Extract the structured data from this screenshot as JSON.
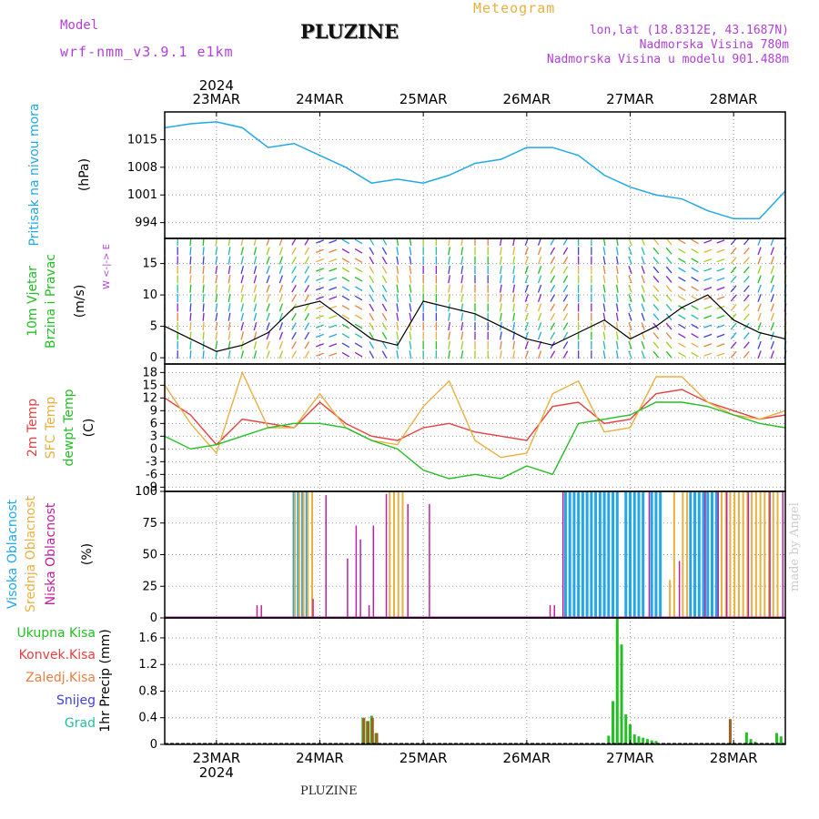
{
  "header": {
    "model_label": "Model",
    "model_run": "wrf-nmm_v3.9.1  e1km",
    "title": "PLUZINE",
    "meteogram": "Meteogram",
    "location": "lon,lat (18.8312E, 43.1687N)",
    "altitude": "Nadmorska Visina 780m",
    "model_altitude": "Nadmorska Visina u modelu 901.488m",
    "footer": "PLUZINE",
    "credit": "made by Angel"
  },
  "colors": {
    "pressure": "#22a8e8",
    "temp2m": "#e84040",
    "sfc": "#e8b040",
    "dewpt": "#22c022",
    "high_cloud": "#22a8e8",
    "mid_cloud": "#e8b040",
    "low_cloud": "#c020a0",
    "precip": "#22c022",
    "conv": "#a06020"
  },
  "chart_data": [
    {
      "type": "line",
      "panel": "pressure",
      "ylabel": [
        "Pritisak na nivou mora",
        "(hPa)"
      ],
      "ylim": [
        990,
        1022
      ],
      "yticks": [
        994,
        1001,
        1008,
        1015
      ],
      "x_labels": [
        "23MAR",
        "24MAR",
        "25MAR",
        "26MAR",
        "27MAR",
        "28MAR"
      ],
      "x_year": "2024",
      "x": [
        0,
        6,
        12,
        18,
        24,
        30,
        36,
        42,
        48,
        54,
        60,
        66,
        72,
        78,
        84,
        90,
        96,
        102,
        108,
        114,
        120,
        126,
        132,
        138,
        144
      ],
      "values": [
        1018,
        1019,
        1019.5,
        1018,
        1013,
        1014,
        1011,
        1008,
        1004,
        1005,
        1004,
        1006,
        1009,
        1010,
        1013,
        1013,
        1011,
        1006,
        1003,
        1001,
        1000,
        997,
        995,
        995,
        1002
      ]
    },
    {
      "type": "line",
      "panel": "wind",
      "ylabel": [
        "10m Vjetar",
        "Brzina i Pravac",
        "(m/s)"
      ],
      "compass": "W  <-|->  E",
      "ylim": [
        -1,
        19
      ],
      "yticks": [
        0,
        5,
        10,
        15
      ],
      "x": [
        0,
        6,
        12,
        18,
        24,
        30,
        36,
        42,
        48,
        54,
        60,
        66,
        72,
        78,
        84,
        90,
        96,
        102,
        108,
        114,
        120,
        126,
        132,
        138,
        144
      ],
      "values": [
        5,
        3,
        1,
        2,
        4,
        8,
        9,
        6,
        3,
        2,
        9,
        8,
        7,
        5,
        3,
        2,
        4,
        6,
        3,
        5,
        8,
        10,
        6,
        4,
        3
      ]
    },
    {
      "type": "line",
      "panel": "temperature",
      "ylabel": [
        "2m Temp",
        "SFC Temp",
        "dewpt Temp",
        "(C)"
      ],
      "ylim": [
        -10,
        20
      ],
      "yticks": [
        -9,
        -6,
        -3,
        0,
        3,
        6,
        9,
        12,
        15,
        18
      ],
      "x": [
        0,
        6,
        12,
        18,
        24,
        30,
        36,
        42,
        48,
        54,
        60,
        66,
        72,
        78,
        84,
        90,
        96,
        102,
        108,
        114,
        120,
        126,
        132,
        138,
        144
      ],
      "series": [
        {
          "name": "2m Temp",
          "values": [
            12,
            8,
            1,
            7,
            6,
            5,
            11,
            6,
            3,
            2,
            5,
            6,
            4,
            3,
            2,
            10,
            11,
            6,
            7,
            13,
            14,
            11,
            9,
            7,
            8
          ]
        },
        {
          "name": "SFC Temp",
          "values": [
            15,
            6,
            -1,
            18,
            5,
            5,
            13,
            5,
            2,
            1,
            10,
            16,
            2,
            -2,
            -1,
            13,
            16,
            4,
            5,
            17,
            17,
            11,
            8,
            7,
            9
          ]
        },
        {
          "name": "dewpt Temp",
          "values": [
            3,
            0,
            1,
            3,
            5,
            6,
            6,
            5,
            2,
            0,
            -5,
            -7,
            -6,
            -7,
            -4,
            -6,
            6,
            7,
            8,
            11,
            11,
            10,
            8,
            6,
            5
          ]
        }
      ]
    },
    {
      "type": "bar",
      "panel": "clouds",
      "ylabel": [
        "Visoka Oblacnost",
        "Srednja Oblacnost",
        "Niska Oblacnost",
        "(%)"
      ],
      "ylim": [
        0,
        100
      ],
      "yticks": [
        0,
        25,
        50,
        75,
        100
      ],
      "series": [
        {
          "name": "Visoka Oblacnost",
          "x": [
            30,
            31,
            32,
            33,
            93,
            94,
            95,
            96,
            97,
            98,
            99,
            100,
            101,
            102,
            103,
            104,
            105,
            107,
            108,
            109,
            110,
            111,
            113,
            114,
            115,
            122,
            123,
            124,
            125,
            126,
            127,
            128
          ],
          "values": [
            100,
            100,
            100,
            100,
            100,
            100,
            100,
            100,
            100,
            100,
            100,
            100,
            100,
            100,
            100,
            100,
            100,
            100,
            100,
            100,
            100,
            100,
            100,
            100,
            100,
            100,
            100,
            100,
            100,
            100,
            100,
            100
          ]
        },
        {
          "name": "Srednja Oblacnost",
          "x": [
            30,
            31,
            32,
            33,
            34,
            52,
            53,
            54,
            55,
            117,
            118,
            120,
            121,
            129,
            130,
            131,
            132,
            133,
            134,
            135,
            136,
            137,
            138,
            139,
            140,
            141,
            142
          ],
          "values": [
            100,
            100,
            100,
            100,
            100,
            100,
            100,
            100,
            100,
            30,
            100,
            100,
            100,
            100,
            100,
            100,
            100,
            100,
            100,
            100,
            100,
            100,
            100,
            100,
            100,
            100,
            100
          ]
        },
        {
          "name": "Niska Oblacnost",
          "x": [
            21,
            22,
            34,
            37,
            42,
            44,
            45,
            47,
            48,
            51,
            56,
            61,
            89,
            90,
            92,
            112,
            119,
            125,
            128,
            130,
            135,
            140,
            143
          ],
          "values": [
            10,
            10,
            15,
            97,
            47,
            73,
            62,
            10,
            73,
            98,
            90,
            90,
            10,
            10,
            100,
            100,
            45,
            100,
            100,
            100,
            100,
            100,
            100
          ]
        }
      ]
    },
    {
      "type": "bar",
      "panel": "precip",
      "ylabel": [
        "1hr Precip (mm)"
      ],
      "legend": [
        "Ukupna Kisa",
        "Konvek.Kisa",
        "Zaledj.Kisa",
        "Snijeg",
        "Grad"
      ],
      "ylim": [
        0,
        1.9
      ],
      "yticks": [
        0,
        0.4,
        0.8,
        1.2,
        1.6
      ],
      "series": [
        {
          "name": "Ukupna Kisa",
          "x": [
            46,
            47,
            48,
            49,
            50,
            103,
            104,
            105,
            106,
            107,
            108,
            109,
            110,
            111,
            112,
            113,
            114,
            135,
            136,
            137,
            142,
            143
          ],
          "values": [
            0.4,
            0.35,
            0.43,
            0.17,
            0.02,
            0.13,
            0.65,
            1.9,
            1.5,
            0.45,
            0.3,
            0.15,
            0.12,
            0.1,
            0.08,
            0.06,
            0.05,
            0.18,
            0.08,
            0.04,
            0.17,
            0.12
          ]
        },
        {
          "name": "Konvek.Kisa",
          "x": [
            46,
            47,
            48,
            49,
            131
          ],
          "values": [
            0.4,
            0.35,
            0.4,
            0.17,
            0.38
          ]
        }
      ]
    }
  ]
}
